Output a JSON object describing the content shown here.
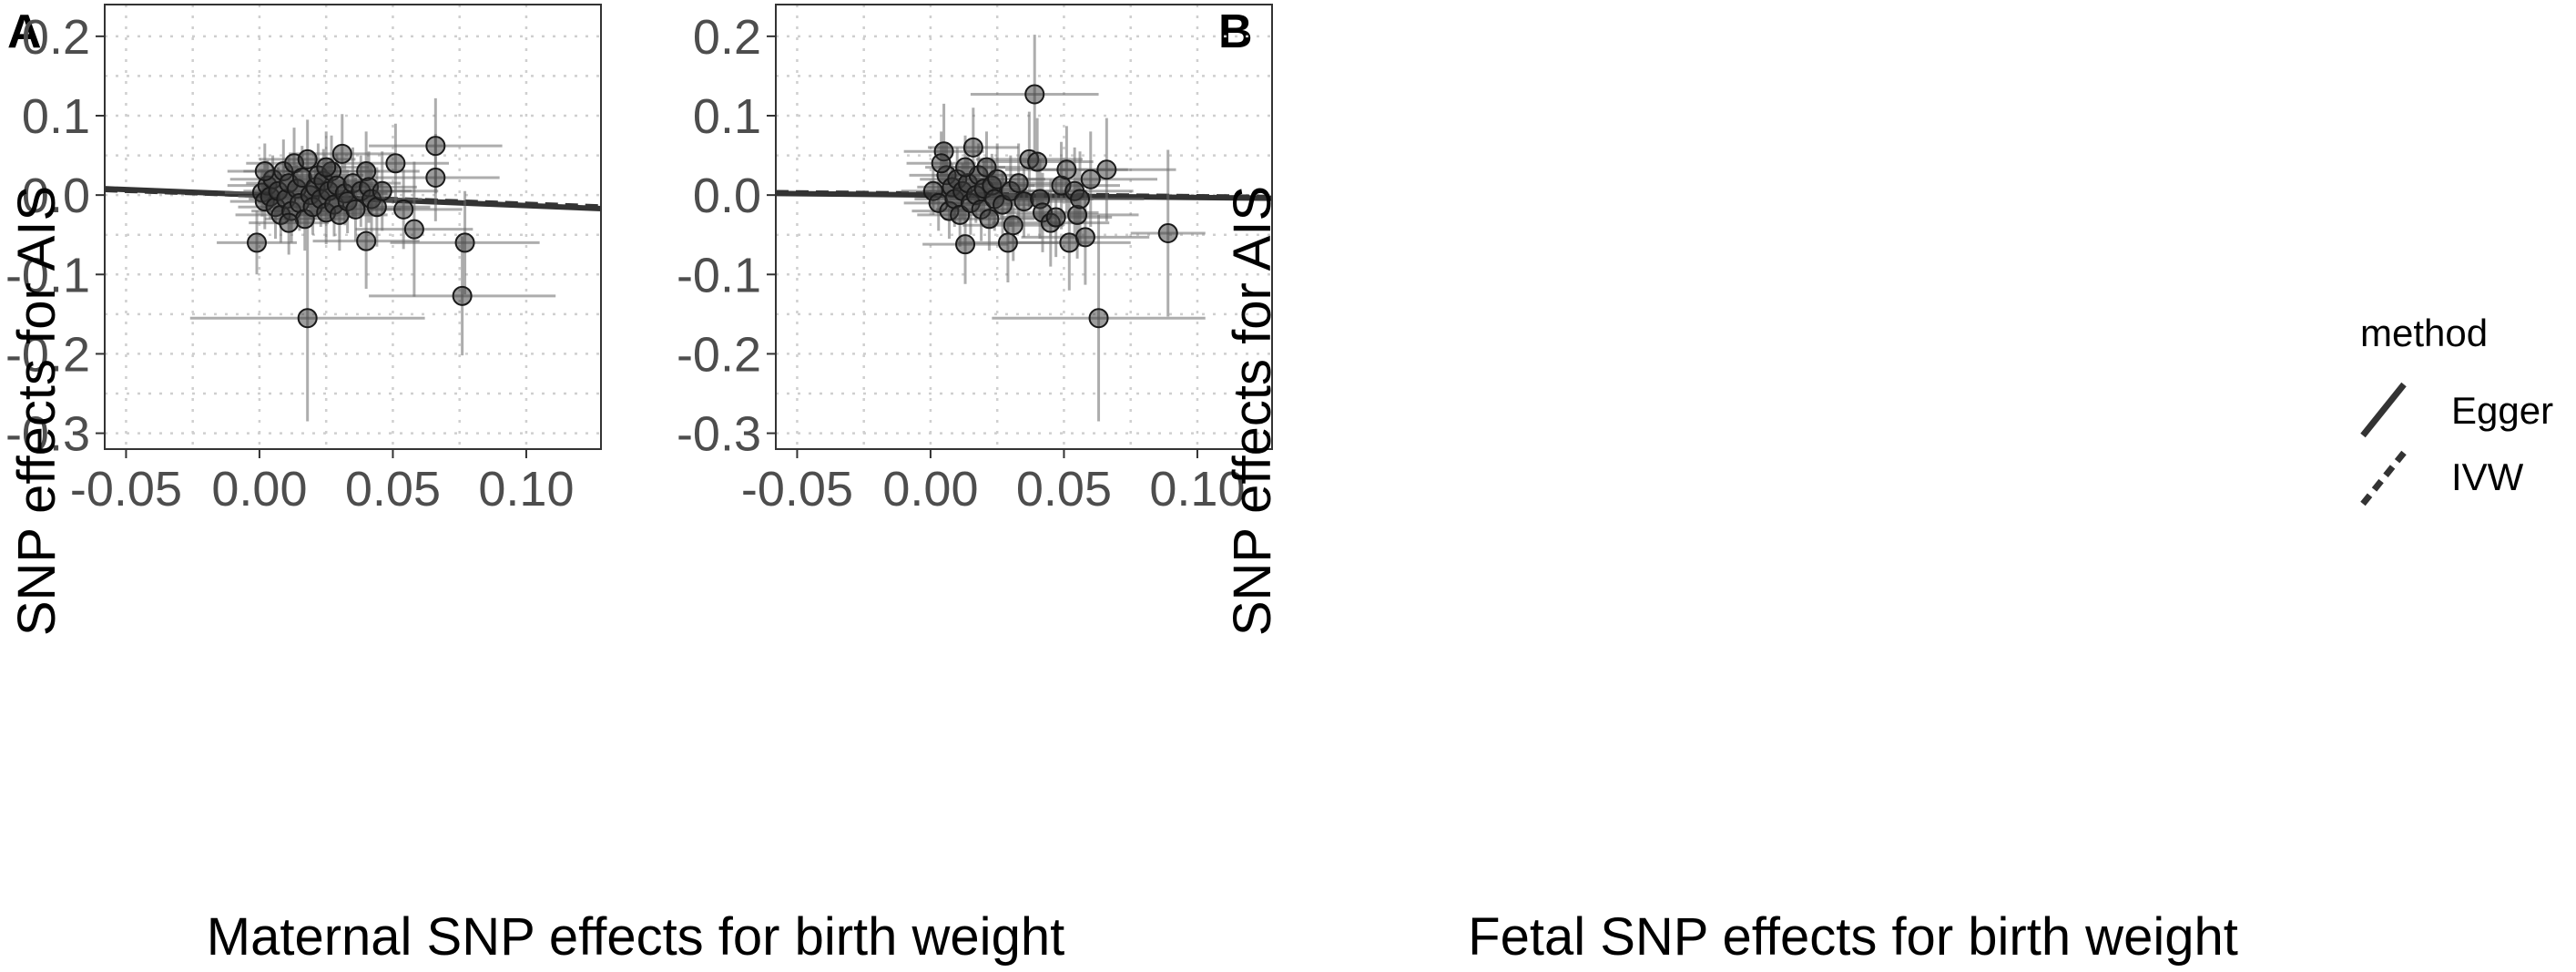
{
  "legend": {
    "title": "method",
    "items": [
      {
        "label": "Egger",
        "linetype": "solid"
      },
      {
        "label": "IVW",
        "linetype": "dashed"
      }
    ]
  },
  "chart_data": [
    {
      "panel": "A",
      "type": "scatter",
      "title": "",
      "xlabel": "Maternal SNP effects for birth weight",
      "ylabel": "SNP effects for AIS",
      "xlim": [
        -0.058,
        0.128
      ],
      "ylim": [
        -0.32,
        0.24
      ],
      "xticks": [
        -0.05,
        0.0,
        0.05,
        0.1
      ],
      "xtick_labels": [
        "-0.05",
        "0.00",
        "0.05",
        "0.10"
      ],
      "yticks": [
        -0.3,
        -0.2,
        -0.1,
        0.0,
        0.1,
        0.2
      ],
      "ytick_labels": [
        "-0.3",
        "-0.2",
        "-0.1",
        "0.0",
        "0.1",
        "0.2"
      ],
      "grid": true,
      "fits": [
        {
          "method": "Egger",
          "x": [
            -0.058,
            0.128
          ],
          "y": [
            0.008,
            -0.017
          ]
        },
        {
          "method": "IVW",
          "x": [
            -0.058,
            0.128
          ],
          "y": [
            0.007,
            -0.015
          ]
        }
      ],
      "points": [
        {
          "x": 0.001,
          "y": 0.003,
          "xerr": 0.014,
          "yerr": 0.03
        },
        {
          "x": 0.002,
          "y": -0.008,
          "xerr": 0.013,
          "yerr": 0.035
        },
        {
          "x": 0.003,
          "y": 0.012,
          "xerr": 0.015,
          "yerr": 0.032
        },
        {
          "x": 0.004,
          "y": -0.002,
          "xerr": 0.012,
          "yerr": 0.028
        },
        {
          "x": 0.005,
          "y": 0.02,
          "xerr": 0.016,
          "yerr": 0.03
        },
        {
          "x": 0.006,
          "y": -0.015,
          "xerr": 0.014,
          "yerr": 0.04
        },
        {
          "x": 0.007,
          "y": 0.005,
          "xerr": 0.013,
          "yerr": 0.03
        },
        {
          "x": 0.008,
          "y": -0.025,
          "xerr": 0.017,
          "yerr": 0.035
        },
        {
          "x": 0.009,
          "y": 0.03,
          "xerr": 0.015,
          "yerr": 0.04
        },
        {
          "x": 0.01,
          "y": -0.005,
          "xerr": 0.014,
          "yerr": 0.03
        },
        {
          "x": 0.011,
          "y": 0.015,
          "xerr": 0.016,
          "yerr": 0.035
        },
        {
          "x": 0.012,
          "y": -0.02,
          "xerr": 0.015,
          "yerr": 0.04
        },
        {
          "x": 0.013,
          "y": 0.04,
          "xerr": 0.018,
          "yerr": 0.045
        },
        {
          "x": 0.014,
          "y": 0.008,
          "xerr": 0.013,
          "yerr": 0.03
        },
        {
          "x": 0.015,
          "y": -0.01,
          "xerr": 0.014,
          "yerr": 0.035
        },
        {
          "x": 0.016,
          "y": 0.022,
          "xerr": 0.016,
          "yerr": 0.04
        },
        {
          "x": 0.017,
          "y": -0.03,
          "xerr": 0.015,
          "yerr": 0.04
        },
        {
          "x": 0.018,
          "y": 0.045,
          "xerr": 0.018,
          "yerr": 0.05
        },
        {
          "x": 0.019,
          "y": 0.0,
          "xerr": 0.014,
          "yerr": 0.03
        },
        {
          "x": 0.02,
          "y": -0.015,
          "xerr": 0.015,
          "yerr": 0.035
        },
        {
          "x": 0.021,
          "y": 0.01,
          "xerr": 0.016,
          "yerr": 0.04
        },
        {
          "x": 0.022,
          "y": 0.025,
          "xerr": 0.017,
          "yerr": 0.04
        },
        {
          "x": 0.023,
          "y": -0.005,
          "xerr": 0.015,
          "yerr": 0.035
        },
        {
          "x": 0.024,
          "y": 0.018,
          "xerr": 0.016,
          "yerr": 0.04
        },
        {
          "x": 0.025,
          "y": -0.022,
          "xerr": 0.017,
          "yerr": 0.04
        },
        {
          "x": 0.026,
          "y": 0.005,
          "xerr": 0.015,
          "yerr": 0.035
        },
        {
          "x": 0.027,
          "y": 0.03,
          "xerr": 0.018,
          "yerr": 0.045
        },
        {
          "x": 0.028,
          "y": -0.012,
          "xerr": 0.016,
          "yerr": 0.04
        },
        {
          "x": 0.029,
          "y": 0.012,
          "xerr": 0.017,
          "yerr": 0.04
        },
        {
          "x": 0.03,
          "y": -0.025,
          "xerr": 0.018,
          "yerr": 0.045
        },
        {
          "x": 0.031,
          "y": 0.052,
          "xerr": 0.02,
          "yerr": 0.05
        },
        {
          "x": 0.032,
          "y": 0.002,
          "xerr": 0.016,
          "yerr": 0.04
        },
        {
          "x": 0.033,
          "y": -0.008,
          "xerr": 0.017,
          "yerr": 0.04
        },
        {
          "x": 0.035,
          "y": 0.015,
          "xerr": 0.018,
          "yerr": 0.045
        },
        {
          "x": 0.036,
          "y": -0.018,
          "xerr": 0.017,
          "yerr": 0.04
        },
        {
          "x": 0.038,
          "y": 0.005,
          "xerr": 0.019,
          "yerr": 0.045
        },
        {
          "x": 0.04,
          "y": 0.03,
          "xerr": 0.02,
          "yerr": 0.05
        },
        {
          "x": 0.04,
          "y": -0.058,
          "xerr": 0.02,
          "yerr": 0.06
        },
        {
          "x": 0.041,
          "y": 0.01,
          "xerr": 0.018,
          "yerr": 0.045
        },
        {
          "x": 0.042,
          "y": -0.005,
          "xerr": 0.019,
          "yerr": 0.045
        },
        {
          "x": 0.044,
          "y": -0.015,
          "xerr": 0.02,
          "yerr": 0.05
        },
        {
          "x": 0.046,
          "y": 0.005,
          "xerr": 0.021,
          "yerr": 0.05
        },
        {
          "x": 0.051,
          "y": 0.04,
          "xerr": 0.02,
          "yerr": 0.05
        },
        {
          "x": 0.054,
          "y": -0.018,
          "xerr": 0.022,
          "yerr": 0.05
        },
        {
          "x": 0.058,
          "y": -0.043,
          "xerr": 0.022,
          "yerr": 0.085
        },
        {
          "x": 0.066,
          "y": 0.062,
          "xerr": 0.025,
          "yerr": 0.06
        },
        {
          "x": 0.066,
          "y": 0.022,
          "xerr": 0.024,
          "yerr": 0.055
        },
        {
          "x": 0.077,
          "y": -0.06,
          "xerr": 0.028,
          "yerr": 0.065
        },
        {
          "x": 0.076,
          "y": -0.127,
          "xerr": 0.035,
          "yerr": 0.075
        },
        {
          "x": 0.018,
          "y": -0.155,
          "xerr": 0.044,
          "yerr": 0.13
        },
        {
          "x": -0.001,
          "y": -0.06,
          "xerr": 0.015,
          "yerr": 0.04
        },
        {
          "x": 0.002,
          "y": 0.03,
          "xerr": 0.014,
          "yerr": 0.035
        },
        {
          "x": 0.011,
          "y": -0.035,
          "xerr": 0.015,
          "yerr": 0.04
        },
        {
          "x": 0.025,
          "y": 0.035,
          "xerr": 0.016,
          "yerr": 0.045
        }
      ]
    },
    {
      "panel": "B",
      "type": "scatter",
      "title": "",
      "xlabel": "Fetal SNP effects for birth weight",
      "ylabel": "SNP effects for AIS",
      "xlim": [
        -0.058,
        0.128
      ],
      "ylim": [
        -0.32,
        0.24
      ],
      "xticks": [
        -0.05,
        0.0,
        0.05,
        0.1
      ],
      "xtick_labels": [
        "-0.05",
        "0.00",
        "0.05",
        "0.10"
      ],
      "yticks": [
        -0.3,
        -0.2,
        -0.1,
        0.0,
        0.1,
        0.2
      ],
      "ytick_labels": [
        "-0.3",
        "-0.2",
        "-0.1",
        "0.0",
        "0.1",
        "0.2"
      ],
      "grid": true,
      "fits": [
        {
          "method": "Egger",
          "x": [
            -0.058,
            0.128
          ],
          "y": [
            0.002,
            -0.004
          ]
        },
        {
          "method": "IVW",
          "x": [
            -0.058,
            0.128
          ],
          "y": [
            0.003,
            -0.003
          ]
        }
      ],
      "points": [
        {
          "x": 0.001,
          "y": 0.005,
          "xerr": 0.012,
          "yerr": 0.03
        },
        {
          "x": 0.003,
          "y": -0.01,
          "xerr": 0.013,
          "yerr": 0.035
        },
        {
          "x": 0.005,
          "y": 0.055,
          "xerr": 0.015,
          "yerr": 0.06
        },
        {
          "x": 0.006,
          "y": 0.025,
          "xerr": 0.014,
          "yerr": 0.04
        },
        {
          "x": 0.007,
          "y": -0.02,
          "xerr": 0.014,
          "yerr": 0.035
        },
        {
          "x": 0.008,
          "y": 0.01,
          "xerr": 0.013,
          "yerr": 0.03
        },
        {
          "x": 0.009,
          "y": -0.005,
          "xerr": 0.015,
          "yerr": 0.035
        },
        {
          "x": 0.01,
          "y": 0.02,
          "xerr": 0.014,
          "yerr": 0.04
        },
        {
          "x": 0.011,
          "y": -0.025,
          "xerr": 0.016,
          "yerr": 0.04
        },
        {
          "x": 0.012,
          "y": 0.005,
          "xerr": 0.015,
          "yerr": 0.035
        },
        {
          "x": 0.013,
          "y": -0.062,
          "xerr": 0.016,
          "yerr": 0.05
        },
        {
          "x": 0.014,
          "y": 0.015,
          "xerr": 0.015,
          "yerr": 0.035
        },
        {
          "x": 0.015,
          "y": -0.01,
          "xerr": 0.016,
          "yerr": 0.04
        },
        {
          "x": 0.016,
          "y": 0.06,
          "xerr": 0.017,
          "yerr": 0.05
        },
        {
          "x": 0.017,
          "y": 0.0,
          "xerr": 0.015,
          "yerr": 0.035
        },
        {
          "x": 0.018,
          "y": 0.025,
          "xerr": 0.016,
          "yerr": 0.04
        },
        {
          "x": 0.019,
          "y": -0.018,
          "xerr": 0.017,
          "yerr": 0.04
        },
        {
          "x": 0.02,
          "y": 0.008,
          "xerr": 0.016,
          "yerr": 0.035
        },
        {
          "x": 0.021,
          "y": 0.035,
          "xerr": 0.018,
          "yerr": 0.045
        },
        {
          "x": 0.022,
          "y": -0.03,
          "xerr": 0.017,
          "yerr": 0.04
        },
        {
          "x": 0.023,
          "y": 0.012,
          "xerr": 0.016,
          "yerr": 0.04
        },
        {
          "x": 0.024,
          "y": -0.005,
          "xerr": 0.017,
          "yerr": 0.04
        },
        {
          "x": 0.025,
          "y": 0.02,
          "xerr": 0.018,
          "yerr": 0.045
        },
        {
          "x": 0.027,
          "y": -0.012,
          "xerr": 0.017,
          "yerr": 0.04
        },
        {
          "x": 0.029,
          "y": -0.06,
          "xerr": 0.019,
          "yerr": 0.05
        },
        {
          "x": 0.03,
          "y": 0.005,
          "xerr": 0.018,
          "yerr": 0.045
        },
        {
          "x": 0.031,
          "y": -0.038,
          "xerr": 0.019,
          "yerr": 0.045
        },
        {
          "x": 0.033,
          "y": 0.015,
          "xerr": 0.02,
          "yerr": 0.05
        },
        {
          "x": 0.035,
          "y": -0.008,
          "xerr": 0.019,
          "yerr": 0.045
        },
        {
          "x": 0.037,
          "y": 0.045,
          "xerr": 0.02,
          "yerr": 0.06
        },
        {
          "x": 0.039,
          "y": 0.127,
          "xerr": 0.024,
          "yerr": 0.075
        },
        {
          "x": 0.04,
          "y": 0.042,
          "xerr": 0.021,
          "yerr": 0.055
        },
        {
          "x": 0.041,
          "y": -0.005,
          "xerr": 0.02,
          "yerr": 0.05
        },
        {
          "x": 0.042,
          "y": -0.022,
          "xerr": 0.021,
          "yerr": 0.05
        },
        {
          "x": 0.045,
          "y": -0.035,
          "xerr": 0.022,
          "yerr": 0.055
        },
        {
          "x": 0.047,
          "y": -0.028,
          "xerr": 0.021,
          "yerr": 0.05
        },
        {
          "x": 0.049,
          "y": 0.012,
          "xerr": 0.022,
          "yerr": 0.055
        },
        {
          "x": 0.051,
          "y": 0.032,
          "xerr": 0.023,
          "yerr": 0.055
        },
        {
          "x": 0.052,
          "y": -0.06,
          "xerr": 0.023,
          "yerr": 0.06
        },
        {
          "x": 0.054,
          "y": 0.005,
          "xerr": 0.022,
          "yerr": 0.055
        },
        {
          "x": 0.055,
          "y": -0.025,
          "xerr": 0.023,
          "yerr": 0.055
        },
        {
          "x": 0.056,
          "y": -0.005,
          "xerr": 0.024,
          "yerr": 0.06
        },
        {
          "x": 0.058,
          "y": -0.053,
          "xerr": 0.024,
          "yerr": 0.06
        },
        {
          "x": 0.06,
          "y": 0.02,
          "xerr": 0.025,
          "yerr": 0.06
        },
        {
          "x": 0.063,
          "y": -0.155,
          "xerr": 0.04,
          "yerr": 0.13
        },
        {
          "x": 0.066,
          "y": 0.032,
          "xerr": 0.026,
          "yerr": 0.065
        },
        {
          "x": 0.089,
          "y": -0.048,
          "xerr": 0.014,
          "yerr": 0.105
        },
        {
          "x": 0.004,
          "y": 0.04,
          "xerr": 0.013,
          "yerr": 0.04
        },
        {
          "x": 0.013,
          "y": 0.035,
          "xerr": 0.015,
          "yerr": 0.04
        }
      ]
    }
  ]
}
